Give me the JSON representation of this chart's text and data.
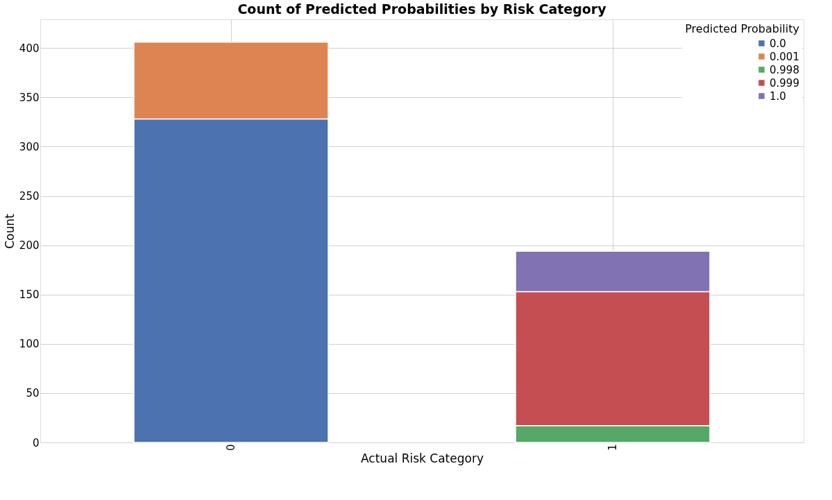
{
  "chart_data": {
    "type": "bar",
    "title": "Count of Predicted Probabilities by Risk Category",
    "xlabel": "Actual Risk Category",
    "ylabel": "Count",
    "legend_title": "Predicted Probability",
    "categories": [
      "0",
      "1"
    ],
    "series": [
      {
        "name": "0.0",
        "color": "#4c72b0",
        "values": [
          328,
          null
        ]
      },
      {
        "name": "0.001",
        "color": "#dd8452",
        "values": [
          78,
          null
        ]
      },
      {
        "name": "0.998",
        "color": "#55a868",
        "values": [
          null,
          17
        ]
      },
      {
        "name": "0.999",
        "color": "#c44e52",
        "values": [
          null,
          136
        ]
      },
      {
        "name": "1.0",
        "color": "#8172b3",
        "values": [
          null,
          41
        ]
      }
    ],
    "stacked": true,
    "ylim": [
      0,
      429
    ],
    "yticks": [
      0,
      50,
      100,
      150,
      200,
      250,
      300,
      350,
      400
    ],
    "grid": true,
    "legend": "top right"
  }
}
